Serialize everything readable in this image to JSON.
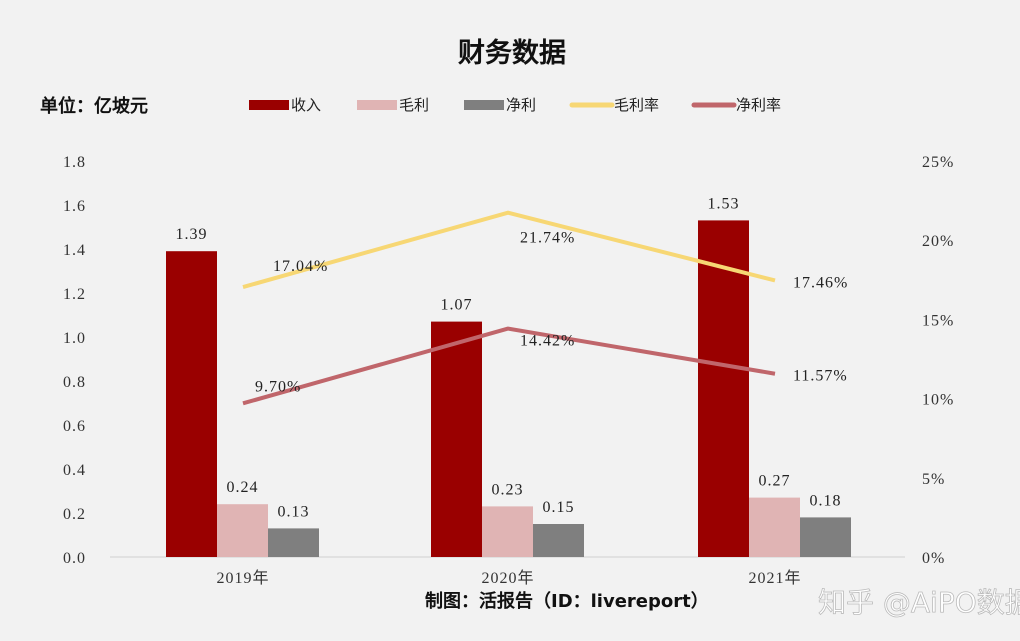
{
  "chart_data": {
    "type": "bar",
    "title": "财务数据",
    "unit_label": "单位：亿坡元",
    "categories": [
      "2019年",
      "2020年",
      "2021年"
    ],
    "y_left": {
      "range": [
        0,
        1.8
      ],
      "ticks": [
        "0.0",
        "0.2",
        "0.4",
        "0.6",
        "0.8",
        "1.0",
        "1.2",
        "1.4",
        "1.6",
        "1.8"
      ]
    },
    "y_right": {
      "range": [
        0,
        25
      ],
      "ticks": [
        "0%",
        "5%",
        "10%",
        "15%",
        "20%",
        "25%"
      ]
    },
    "grid": false,
    "legend_placement": "top",
    "series": [
      {
        "name": "收入",
        "type": "bar",
        "axis": "left",
        "color": "#9a0000",
        "values": [
          1.39,
          1.07,
          1.53
        ],
        "labels": [
          "1.39",
          "1.07",
          "1.53"
        ]
      },
      {
        "name": "毛利",
        "type": "bar",
        "axis": "left",
        "color": "#e0b4b4",
        "values": [
          0.24,
          0.23,
          0.27
        ],
        "labels": [
          "0.24",
          "0.23",
          "0.27"
        ]
      },
      {
        "name": "净利",
        "type": "bar",
        "axis": "left",
        "color": "#7f7f7f",
        "values": [
          0.13,
          0.15,
          0.18
        ],
        "labels": [
          "0.13",
          "0.15",
          "0.18"
        ]
      },
      {
        "name": "毛利率",
        "type": "line",
        "axis": "right",
        "color": "#f7d774",
        "values": [
          17.04,
          21.74,
          17.46
        ],
        "labels": [
          "17.04%",
          "21.74%",
          "17.46%"
        ]
      },
      {
        "name": "净利率",
        "type": "line",
        "axis": "right",
        "color": "#c0666b",
        "values": [
          9.7,
          14.42,
          11.57
        ],
        "labels": [
          "9.70%",
          "14.42%",
          "11.57%"
        ]
      }
    ]
  },
  "footer": {
    "credit": "制图：活报告（ID：livereport）",
    "watermark": "知乎 @AiPO数据网"
  }
}
